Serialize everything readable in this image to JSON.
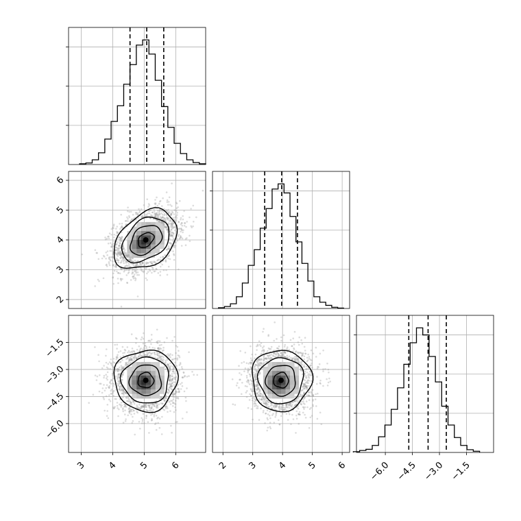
{
  "chart_data": [
    {
      "type": "histogram",
      "panel": "diagonal-1",
      "bins": [
        3.05,
        3.25,
        3.45,
        3.65,
        3.85,
        4.05,
        4.25,
        4.45,
        4.65,
        4.85,
        5.05,
        5.25,
        5.45,
        5.65,
        5.85,
        6.05,
        6.25,
        6.45,
        6.65,
        6.85
      ],
      "counts": [
        2,
        4,
        12,
        30,
        65,
        110,
        150,
        205,
        255,
        305,
        318,
        282,
        215,
        148,
        95,
        54,
        28,
        12,
        5,
        2
      ],
      "quantiles": [
        4.55,
        5.08,
        5.62
      ],
      "xlim": [
        2.6,
        6.95
      ],
      "ylim": [
        0,
        350
      ],
      "show_x_ticks": false,
      "show_y_ticks": false
    },
    {
      "type": "scatter",
      "panel": "pair-x1-x2",
      "center": [
        5.05,
        4.0
      ],
      "std": [
        0.5,
        0.5
      ],
      "correlation": 0.35,
      "num_points": 2600,
      "contour_levels": [
        0.5,
        1.0,
        1.5,
        2.0
      ],
      "xlim": [
        2.6,
        6.95
      ],
      "ylim": [
        1.7,
        6.3
      ],
      "yticks": [
        "2",
        "3",
        "4",
        "5",
        "6"
      ],
      "ytick_values": [
        2,
        3,
        4,
        5,
        6
      ],
      "show_x_ticks": false,
      "show_y_ticks": true
    },
    {
      "type": "histogram",
      "panel": "diagonal-2",
      "bins": [
        1.95,
        2.15,
        2.35,
        2.55,
        2.75,
        2.95,
        3.15,
        3.35,
        3.55,
        3.75,
        3.95,
        4.15,
        4.35,
        4.55,
        4.75,
        4.95,
        5.15,
        5.35,
        5.55,
        5.75,
        5.95
      ],
      "counts": [
        2,
        5,
        12,
        30,
        65,
        110,
        150,
        205,
        255,
        305,
        318,
        295,
        235,
        170,
        115,
        70,
        30,
        16,
        8,
        3,
        1
      ],
      "quantiles": [
        3.4,
        3.97,
        4.5
      ],
      "xlim": [
        1.65,
        6.25
      ],
      "ylim": [
        0,
        350
      ],
      "show_x_ticks": false,
      "show_y_ticks": false
    },
    {
      "type": "scatter",
      "panel": "pair-x1-x3",
      "center": [
        5.05,
        -3.6
      ],
      "std": [
        0.5,
        0.85
      ],
      "correlation": 0.0,
      "num_points": 2600,
      "contour_levels": [
        0.5,
        1.0,
        1.5,
        2.0
      ],
      "xlim": [
        2.6,
        6.95
      ],
      "ylim": [
        -7.6,
        0.0
      ],
      "xticks": [
        "3",
        "4",
        "5",
        "6"
      ],
      "xtick_values": [
        3,
        4,
        5,
        6
      ],
      "yticks": [
        "−1.5",
        "−3.0",
        "−4.5",
        "−6.0"
      ],
      "ytick_values": [
        -1.5,
        -3.0,
        -4.5,
        -6.0
      ],
      "show_x_ticks": true,
      "show_y_ticks": true
    },
    {
      "type": "scatter",
      "panel": "pair-x2-x3",
      "center": [
        3.95,
        -3.6
      ],
      "std": [
        0.5,
        0.85
      ],
      "correlation": 0.0,
      "num_points": 2600,
      "contour_levels": [
        0.5,
        1.0,
        1.5,
        2.0
      ],
      "xlim": [
        1.65,
        6.25
      ],
      "ylim": [
        -7.6,
        0.0
      ],
      "xticks": [
        "2",
        "3",
        "4",
        "5",
        "6"
      ],
      "xtick_values": [
        2,
        3,
        4,
        5,
        6
      ],
      "show_x_ticks": true,
      "show_y_ticks": false
    },
    {
      "type": "histogram",
      "panel": "diagonal-3",
      "bins": [
        -7.6,
        -7.25,
        -6.9,
        -6.55,
        -6.2,
        -5.85,
        -5.5,
        -5.15,
        -4.8,
        -4.45,
        -4.1,
        -3.75,
        -3.4,
        -3.05,
        -2.7,
        -2.35,
        -2.0,
        -1.65,
        -1.3,
        -0.95
      ],
      "counts": [
        2,
        5,
        8,
        18,
        40,
        70,
        110,
        165,
        225,
        280,
        318,
        300,
        245,
        180,
        118,
        70,
        38,
        18,
        7,
        3
      ],
      "quantiles": [
        -4.7,
        -3.63,
        -2.62
      ],
      "xlim": [
        -7.6,
        0.0
      ],
      "ylim": [
        0,
        350
      ],
      "xticks": [
        "−6.0",
        "−4.5",
        "−3.0",
        "−1.5"
      ],
      "xtick_values": [
        -6.0,
        -4.5,
        -3.0,
        -1.5
      ],
      "show_x_ticks": true,
      "show_y_ticks": false
    }
  ]
}
